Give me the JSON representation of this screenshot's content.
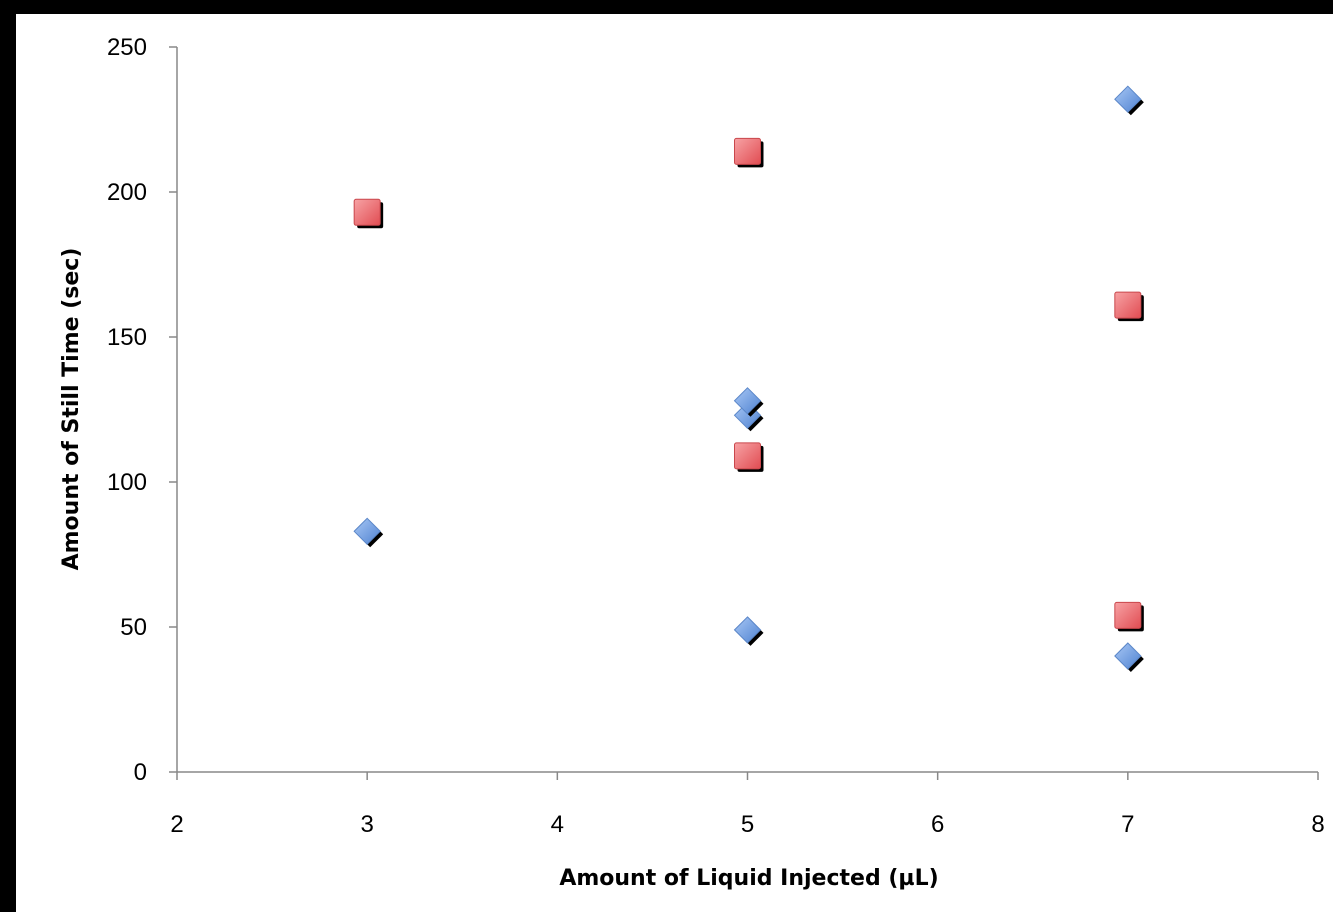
{
  "chart_data": {
    "type": "scatter",
    "title": "",
    "xlabel": "Amount of Liquid Injected (µL)",
    "ylabel": "Amount of Still Time (sec)",
    "xlim": [
      2,
      8
    ],
    "ylim": [
      0,
      250
    ],
    "x_ticks": [
      2,
      3,
      4,
      5,
      6,
      7,
      8
    ],
    "y_ticks": [
      0,
      50,
      100,
      150,
      200,
      250
    ],
    "grid": false,
    "legend": "none",
    "series": [
      {
        "marker": "diamond",
        "color": "#6f9fe0",
        "points": [
          {
            "x": 3,
            "y": 83
          },
          {
            "x": 5,
            "y": 49
          },
          {
            "x": 5,
            "y": 123
          },
          {
            "x": 5,
            "y": 128
          },
          {
            "x": 7,
            "y": 40
          },
          {
            "x": 7,
            "y": 232
          }
        ]
      },
      {
        "marker": "square",
        "color": "#e8656a",
        "points": [
          {
            "x": 3,
            "y": 193
          },
          {
            "x": 5,
            "y": 109
          },
          {
            "x": 5,
            "y": 214
          },
          {
            "x": 7,
            "y": 54
          },
          {
            "x": 7,
            "y": 161
          }
        ]
      }
    ]
  }
}
